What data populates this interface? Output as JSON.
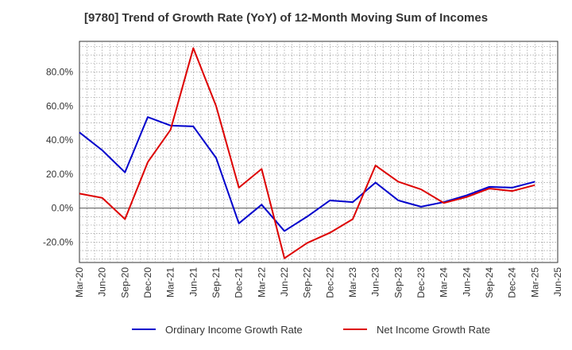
{
  "chart_data": {
    "type": "line",
    "title": "[9780]  Trend of Growth Rate (YoY) of 12-Month Moving Sum of Incomes",
    "xlabel": "",
    "ylabel": "",
    "x": [
      "Mar-20",
      "Jun-20",
      "Sep-20",
      "Dec-20",
      "Mar-21",
      "Jun-21",
      "Sep-21",
      "Dec-21",
      "Mar-22",
      "Jun-22",
      "Sep-22",
      "Dec-22",
      "Mar-23",
      "Jun-23",
      "Sep-23",
      "Dec-23",
      "Mar-24",
      "Jun-24",
      "Sep-24",
      "Dec-24",
      "Mar-25",
      "Jun-25"
    ],
    "x_tick_labels": [
      "Mar-20",
      "Jun-20",
      "Sep-20",
      "Dec-20",
      "Mar-21",
      "Jun-21",
      "Sep-21",
      "Dec-21",
      "Mar-22",
      "Jun-22",
      "Sep-22",
      "Dec-22",
      "Mar-23",
      "Jun-23",
      "Sep-23",
      "Dec-23",
      "Mar-24",
      "Jun-24",
      "Sep-24",
      "Dec-24",
      "Mar-25",
      "Jun-25"
    ],
    "y_ticks": [
      -20,
      0,
      20,
      40,
      60,
      80
    ],
    "y_tick_labels": [
      "-20.0%",
      "0.0%",
      "20.0%",
      "40.0%",
      "60.0%",
      "80.0%"
    ],
    "ylim": [
      -32,
      98
    ],
    "grid": true,
    "legend_position": "bottom",
    "series": [
      {
        "name": "Ordinary Income Growth Rate",
        "color": "#0000cc",
        "values": [
          44.5,
          34.0,
          21.0,
          53.5,
          48.5,
          48.0,
          29.5,
          -9.0,
          2.0,
          -13.5,
          -5.0,
          4.5,
          3.5,
          15.0,
          4.5,
          0.8,
          3.5,
          7.5,
          12.5,
          12.0,
          15.5,
          null
        ]
      },
      {
        "name": "Net Income Growth Rate",
        "color": "#dd0000",
        "values": [
          8.5,
          6.0,
          -6.5,
          27.0,
          46.0,
          94.0,
          60.0,
          12.0,
          23.0,
          -29.5,
          -20.5,
          -14.5,
          -6.5,
          25.0,
          15.5,
          11.0,
          3.0,
          6.5,
          11.5,
          10.0,
          13.5,
          null
        ]
      }
    ]
  }
}
